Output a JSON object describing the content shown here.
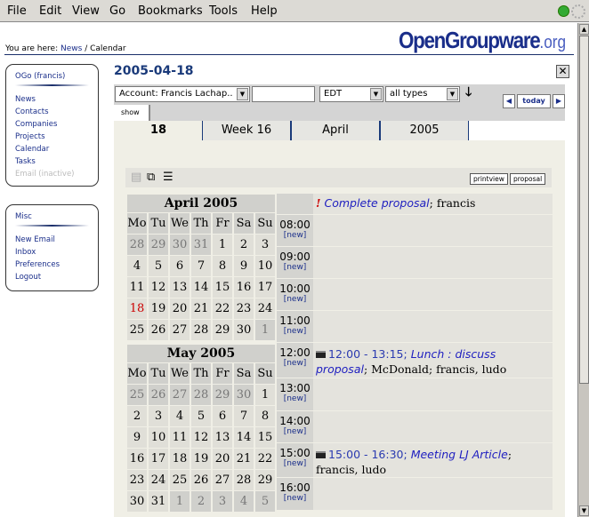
{
  "menu": [
    "File",
    "Edit",
    "View",
    "Go",
    "Bookmarks",
    "Tools",
    "Help"
  ],
  "breadcrumb": {
    "prefix": "You are here:",
    "link": "News",
    "sep": "/",
    "current": "Calendar"
  },
  "logo": {
    "main": "OpenGroupware",
    "suffix": ".org"
  },
  "sidebar": {
    "box1": {
      "title": "OGo (francis)",
      "items": [
        "News",
        "Contacts",
        "Companies",
        "Projects",
        "Calendar",
        "Tasks",
        "Email (inactive)"
      ]
    },
    "box2": {
      "title": "Misc",
      "items": [
        "New Email",
        "Inbox",
        "Preferences",
        "Logout"
      ]
    }
  },
  "page_title": "2005-04-18",
  "toolbar": {
    "account": "Account: Francis Lachap..",
    "search_value": "",
    "timezone": "EDT",
    "type": "all types",
    "show": "show",
    "today": "today"
  },
  "tabs": [
    "18",
    "Week 16",
    "April",
    "2005"
  ],
  "buttons": {
    "printview": "printview",
    "proposal": "proposal"
  },
  "weekdays": [
    "Mo",
    "Tu",
    "We",
    "Th",
    "Fr",
    "Sa",
    "Su"
  ],
  "april": {
    "title": "April 2005",
    "weeks": [
      [
        "28",
        "29",
        "30",
        "31",
        "1",
        "2",
        "3"
      ],
      [
        "4",
        "5",
        "6",
        "7",
        "8",
        "9",
        "10"
      ],
      [
        "11",
        "12",
        "13",
        "14",
        "15",
        "16",
        "17"
      ],
      [
        "18",
        "19",
        "20",
        "21",
        "22",
        "23",
        "24"
      ],
      [
        "25",
        "26",
        "27",
        "28",
        "29",
        "30",
        "1"
      ]
    ]
  },
  "may": {
    "title": "May 2005",
    "weeks": [
      [
        "25",
        "26",
        "27",
        "28",
        "29",
        "30",
        "1"
      ],
      [
        "2",
        "3",
        "4",
        "5",
        "6",
        "7",
        "8"
      ],
      [
        "9",
        "10",
        "11",
        "12",
        "13",
        "14",
        "15"
      ],
      [
        "16",
        "17",
        "18",
        "19",
        "20",
        "21",
        "22"
      ],
      [
        "23",
        "24",
        "25",
        "26",
        "27",
        "28",
        "29"
      ],
      [
        "30",
        "31",
        "1",
        "2",
        "3",
        "4",
        "5"
      ]
    ]
  },
  "new_label": "[new]",
  "allday": {
    "priority": "!",
    "title": "Complete proposal",
    "rest": "; francis"
  },
  "hours": [
    "08:00",
    "09:00",
    "10:00",
    "11:00",
    "12:00",
    "13:00",
    "14:00",
    "15:00",
    "16:00"
  ],
  "events": {
    "12:00": {
      "time": "12:00 - 13:15;",
      "title": "Lunch : discuss proposal",
      "rest": "; McDonald; francis, ludo"
    },
    "15:00": {
      "time": "15:00 - 16:30;",
      "title": "Meeting LJ Article",
      "rest": "; francis, ludo"
    }
  }
}
